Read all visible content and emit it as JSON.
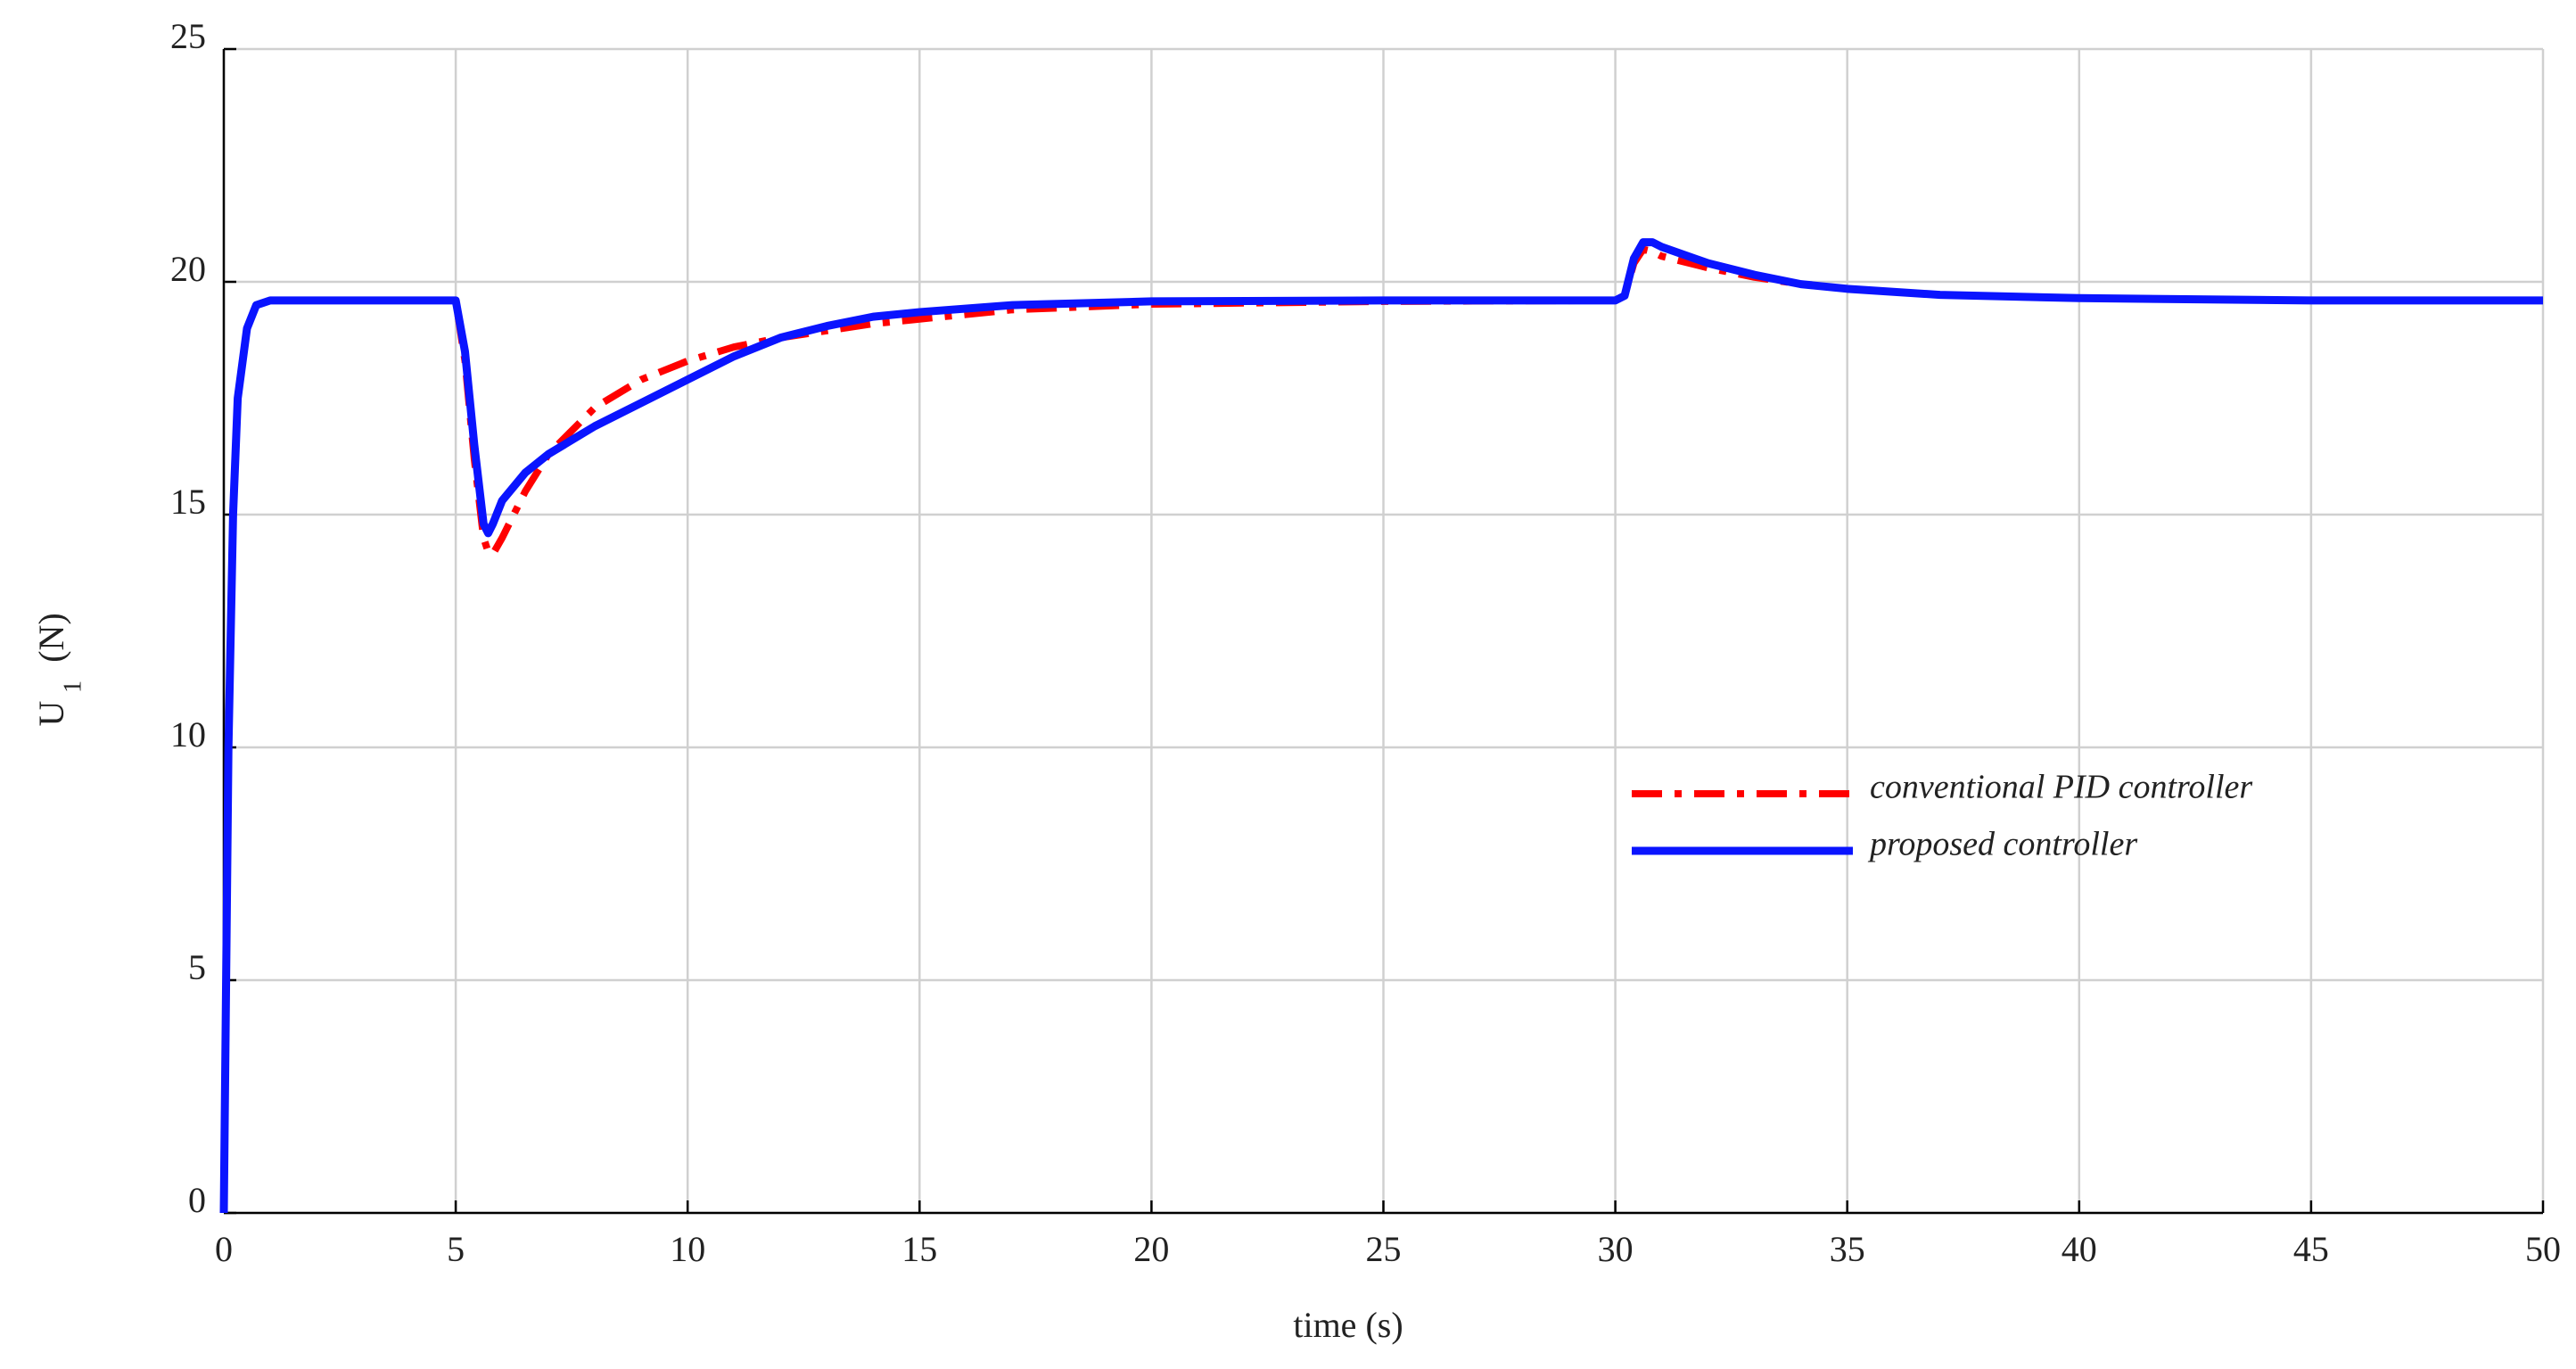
{
  "chart_data": {
    "type": "line",
    "xlabel": "time (s)",
    "ylabel": "U",
    "ylabel_subscript": "1",
    "ylabel_unit": "(N)",
    "x": [
      0,
      0.1,
      0.2,
      0.3,
      0.5,
      0.7,
      1,
      5,
      5.2,
      5.4,
      5.6,
      5.7,
      5.8,
      6,
      6.5,
      7,
      8,
      9,
      10,
      11,
      12,
      13,
      14,
      15,
      17,
      20,
      25,
      30,
      30.2,
      30.4,
      30.6,
      30.8,
      31,
      32,
      33,
      34,
      35,
      37,
      40,
      45,
      50
    ],
    "series": [
      {
        "name": "conventional PID controller",
        "color": "#ff0000",
        "style": "dashdot",
        "values": [
          0,
          10,
          15,
          17.5,
          19,
          19.5,
          19.6,
          19.6,
          18.3,
          16.2,
          14.5,
          14.2,
          14.15,
          14.5,
          15.5,
          16.3,
          17.3,
          17.9,
          18.3,
          18.6,
          18.8,
          18.95,
          19.1,
          19.2,
          19.4,
          19.52,
          19.58,
          19.6,
          19.7,
          20.4,
          20.7,
          20.65,
          20.55,
          20.3,
          20.1,
          19.95,
          19.85,
          19.72,
          19.65,
          19.6,
          19.6
        ]
      },
      {
        "name": "proposed controller",
        "color": "#0a14ff",
        "style": "solid",
        "values": [
          0,
          10,
          15,
          17.5,
          19,
          19.5,
          19.6,
          19.6,
          18.5,
          16.5,
          14.8,
          14.6,
          14.8,
          15.3,
          15.9,
          16.3,
          16.9,
          17.4,
          17.9,
          18.4,
          18.8,
          19.05,
          19.25,
          19.35,
          19.5,
          19.58,
          19.6,
          19.6,
          19.7,
          20.5,
          20.85,
          20.85,
          20.75,
          20.4,
          20.15,
          19.95,
          19.85,
          19.72,
          19.65,
          19.6,
          19.6
        ]
      }
    ],
    "xlim": [
      0,
      50
    ],
    "xticks": [
      0,
      5,
      10,
      15,
      20,
      25,
      30,
      35,
      40,
      45,
      50
    ],
    "ylim": [
      0,
      25
    ],
    "yticks": [
      0,
      5,
      10,
      15,
      20,
      25
    ],
    "grid": true,
    "legend": "center right"
  }
}
